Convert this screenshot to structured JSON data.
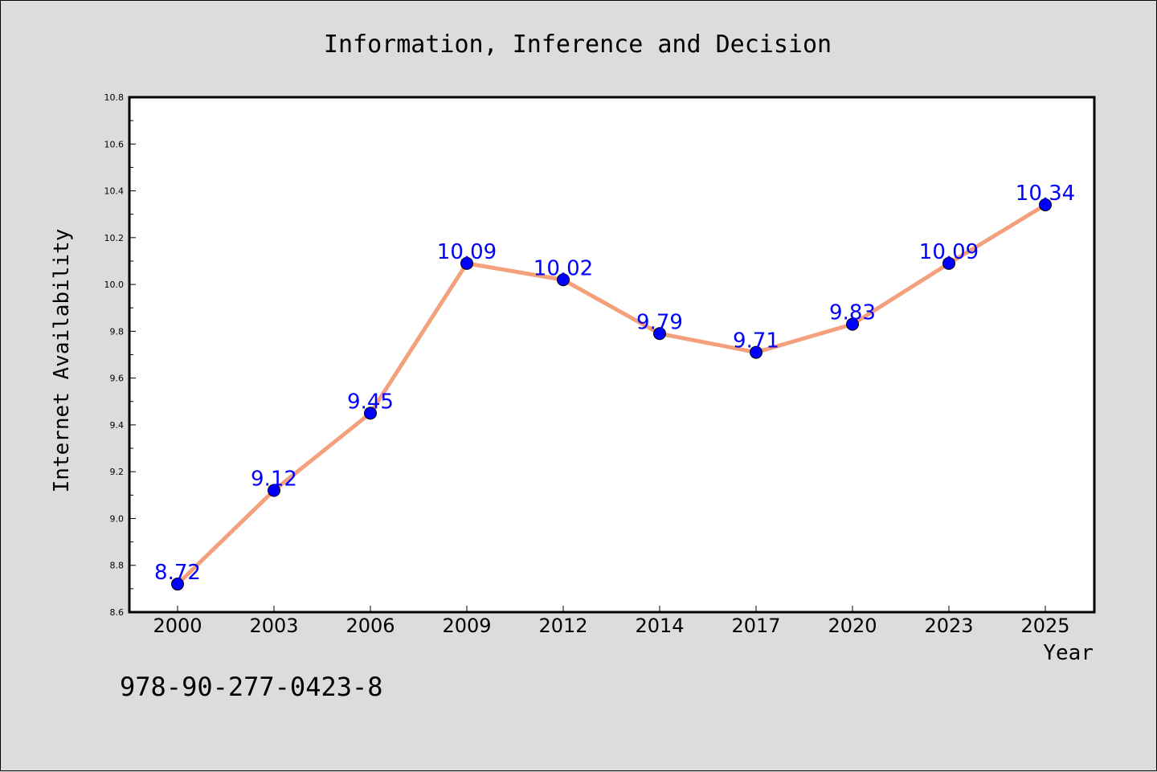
{
  "chart_data": {
    "type": "line",
    "title": "Information, Inference and Decision",
    "xlabel": "Year",
    "ylabel": "Internet Availability",
    "categories": [
      "2000",
      "2003",
      "2006",
      "2009",
      "2012",
      "2014",
      "2017",
      "2020",
      "2023",
      "2025"
    ],
    "series": [
      {
        "values": [
          8.72,
          9.12,
          9.45,
          10.09,
          10.02,
          9.79,
          9.71,
          9.83,
          10.09,
          10.34
        ],
        "data_labels": [
          "8.72",
          "9.12",
          "9.45",
          "10.09",
          "10.02",
          "9.79",
          "9.71",
          "9.83",
          "10.09",
          "10.34"
        ],
        "line_color": "#f4a07c",
        "marker_color": "#0000ff"
      }
    ],
    "ylim": [
      8.6,
      10.8
    ],
    "yticks": [
      "8.6",
      "8.8",
      "9.0",
      "9.2",
      "9.4",
      "9.6",
      "9.8",
      "10.0",
      "10.2",
      "10.4",
      "10.6",
      "10.8"
    ],
    "grid": false,
    "legend": "none"
  },
  "footnote": "978-90-277-0423-8",
  "colors": {
    "background": "#dcdcdc",
    "plot_background": "#ffffff",
    "line": "#f4a07c",
    "marker": "#0000ff",
    "data_label": "#0000ff"
  }
}
